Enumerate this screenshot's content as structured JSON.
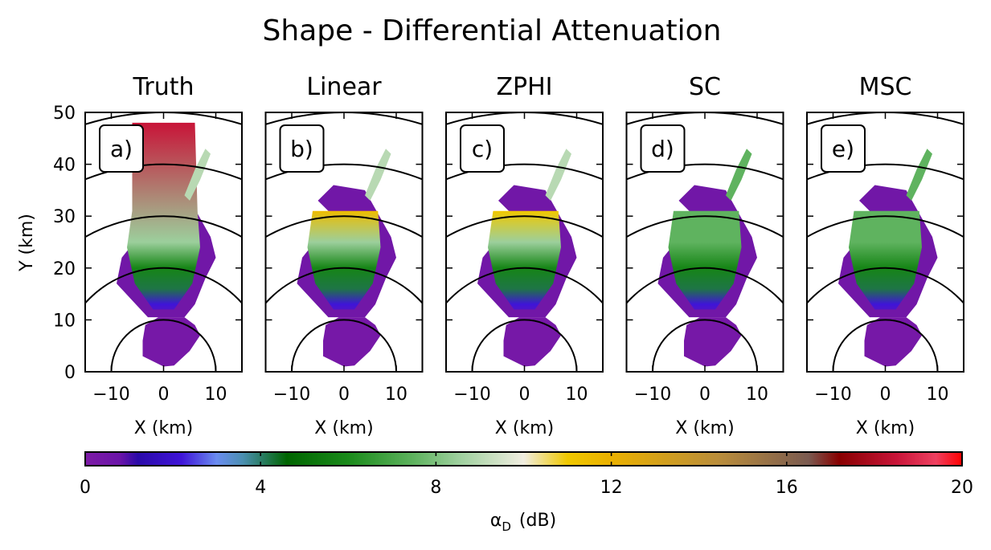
{
  "figure_title": "Shape - Differential Attenuation",
  "chart_data": [
    {
      "type": "heatmap",
      "panel": "a)",
      "title": "Truth",
      "xlabel": "X (km)",
      "ylabel": "Y (km)",
      "xlim": [
        -15,
        15
      ],
      "ylim": [
        0,
        50
      ],
      "xticks": [
        -10,
        0,
        10
      ],
      "yticks": [
        0,
        10,
        20,
        30,
        40,
        50
      ],
      "range_rings_km": [
        10,
        20,
        30,
        40,
        50
      ],
      "core": {
        "ymax": 48,
        "peak_value": 18.5,
        "tail_width_km": 6
      }
    },
    {
      "type": "heatmap",
      "panel": "b)",
      "title": "Linear",
      "xlabel": "X (km)",
      "xlim": [
        -15,
        15
      ],
      "ylim": [
        0,
        50
      ],
      "xticks": [
        -10,
        0,
        10
      ],
      "range_rings_km": [
        10,
        20,
        30,
        40,
        50
      ],
      "core": {
        "ymax": 31,
        "peak_value": 11.5,
        "tail_width_km": 4
      }
    },
    {
      "type": "heatmap",
      "panel": "c)",
      "title": "ZPHI",
      "xlabel": "X (km)",
      "xlim": [
        -15,
        15
      ],
      "ylim": [
        0,
        50
      ],
      "xticks": [
        -10,
        0,
        10
      ],
      "range_rings_km": [
        10,
        20,
        30,
        40,
        50
      ],
      "core": {
        "ymax": 31,
        "peak_value": 11,
        "tail_width_km": 4
      }
    },
    {
      "type": "heatmap",
      "panel": "d)",
      "title": "SC",
      "xlabel": "X (km)",
      "xlim": [
        -15,
        15
      ],
      "ylim": [
        0,
        50
      ],
      "xticks": [
        -10,
        0,
        10
      ],
      "range_rings_km": [
        10,
        20,
        30,
        40,
        50
      ],
      "core": {
        "ymax": 31,
        "peak_value": 7.5,
        "tail_width_km": 4
      }
    },
    {
      "type": "heatmap",
      "panel": "e)",
      "title": "MSC",
      "xlabel": "X (km)",
      "xlim": [
        -15,
        15
      ],
      "ylim": [
        0,
        50
      ],
      "xticks": [
        -10,
        0,
        10
      ],
      "range_rings_km": [
        10,
        20,
        30,
        40,
        50
      ],
      "core": {
        "ymax": 31,
        "peak_value": 7.5,
        "tail_width_km": 4
      }
    }
  ],
  "colorbar": {
    "label": "α_D (dB)",
    "label_main": "α",
    "label_sub": "D",
    "label_unit": "(dB)",
    "min": 0,
    "max": 20,
    "ticks": [
      0,
      4,
      8,
      12,
      16,
      20
    ],
    "stops": [
      {
        "value": 0,
        "color": "#7d1ba6"
      },
      {
        "value": 0.8,
        "color": "#6a14a8"
      },
      {
        "value": 1.2,
        "color": "#2a0aa8"
      },
      {
        "value": 2.2,
        "color": "#3f14d8"
      },
      {
        "value": 3.0,
        "color": "#6a8cf0"
      },
      {
        "value": 3.6,
        "color": "#4a8fb0"
      },
      {
        "value": 4.6,
        "color": "#006400"
      },
      {
        "value": 6.0,
        "color": "#1a8a1a"
      },
      {
        "value": 7.5,
        "color": "#5fb35f"
      },
      {
        "value": 8.5,
        "color": "#9ccf9c"
      },
      {
        "value": 10.0,
        "color": "#f0ede0"
      },
      {
        "value": 11.0,
        "color": "#f0c800"
      },
      {
        "value": 12.0,
        "color": "#eab000"
      },
      {
        "value": 14.5,
        "color": "#b88c3c"
      },
      {
        "value": 16.5,
        "color": "#7a5a50"
      },
      {
        "value": 17.2,
        "color": "#880000"
      },
      {
        "value": 18.5,
        "color": "#c81438"
      },
      {
        "value": 19.4,
        "color": "#ee4060"
      },
      {
        "value": 20.0,
        "color": "#ff0000"
      }
    ]
  }
}
